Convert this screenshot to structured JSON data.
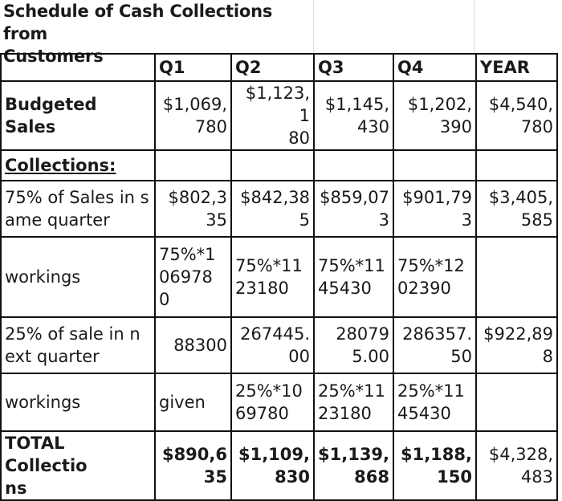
{
  "title": "Schedule of Cash Collections from\nCustomers",
  "columns": [
    "Q1",
    "Q2",
    "Q3",
    "Q4",
    "YEAR"
  ],
  "rows": {
    "budgeted_sales": {
      "label": "Budgeted Sales",
      "values": [
        "$1,069,\n780",
        "$1,123,1\n80",
        "$1,145,\n430",
        "$1,202,\n390",
        "$4,540,\n780"
      ]
    },
    "collections": {
      "label": "Collections:"
    },
    "same_quarter": {
      "label": "75% of Sales in s\name quarter",
      "values": [
        "$802,3\n35",
        "$842,38\n5",
        "$859,07\n3",
        "$901,79\n3",
        "$3,405,\n585"
      ]
    },
    "workings_1": {
      "label": "workings",
      "values": [
        "75%*1\n06978\n0",
        "75%*11\n23180",
        "75%*11\n45430",
        "75%*12\n02390",
        ""
      ]
    },
    "next_quarter": {
      "label": "25% of sale in n\next quarter",
      "values": [
        "88300",
        "267445.\n00",
        "28079\n5.00",
        "286357.\n50",
        "$922,89\n8"
      ]
    },
    "workings_2": {
      "label": "workings",
      "values": [
        "given",
        "25%*10\n69780",
        "25%*11\n23180",
        "25%*11\n45430",
        ""
      ]
    },
    "total": {
      "label": "TOTAL Collectio\nns",
      "values": [
        "$890,6\n35",
        "$1,109,\n830",
        "$1,139,\n868",
        "$1,188,\n150",
        "$4,328,\n483"
      ]
    }
  }
}
